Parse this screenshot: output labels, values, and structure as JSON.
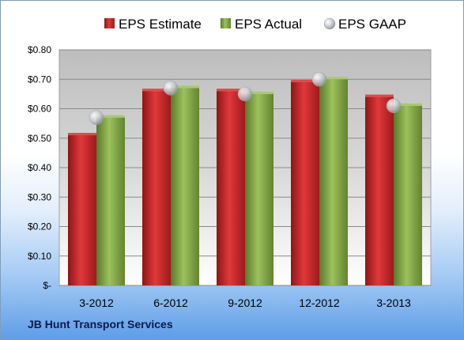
{
  "chart_data": {
    "type": "bar",
    "categories": [
      "3-2012",
      "6-2012",
      "9-2012",
      "12-2012",
      "3-2013"
    ],
    "series": [
      {
        "name": "EPS Estimate",
        "values": [
          0.51,
          0.66,
          0.66,
          0.69,
          0.64
        ],
        "color": "#c0282b",
        "kind": "bar"
      },
      {
        "name": "EPS Actual",
        "values": [
          0.57,
          0.67,
          0.65,
          0.7,
          0.61
        ],
        "color": "#7fa347",
        "kind": "bar"
      },
      {
        "name": "EPS GAAP",
        "values": [
          0.57,
          0.67,
          0.65,
          0.7,
          0.61
        ],
        "color": "#b8bcc4",
        "kind": "marker"
      }
    ],
    "ylim": [
      0,
      0.8
    ],
    "yticks": [
      0,
      0.1,
      0.2,
      0.3,
      0.4,
      0.5,
      0.6,
      0.7,
      0.8
    ],
    "ytick_labels": [
      "$-",
      "$0.10",
      "$0.20",
      "$0.30",
      "$0.40",
      "$0.50",
      "$0.60",
      "$0.70",
      "$0.80"
    ],
    "grid": true,
    "legend_position": "top"
  },
  "footer": {
    "company": "JB Hunt Transport Services"
  }
}
